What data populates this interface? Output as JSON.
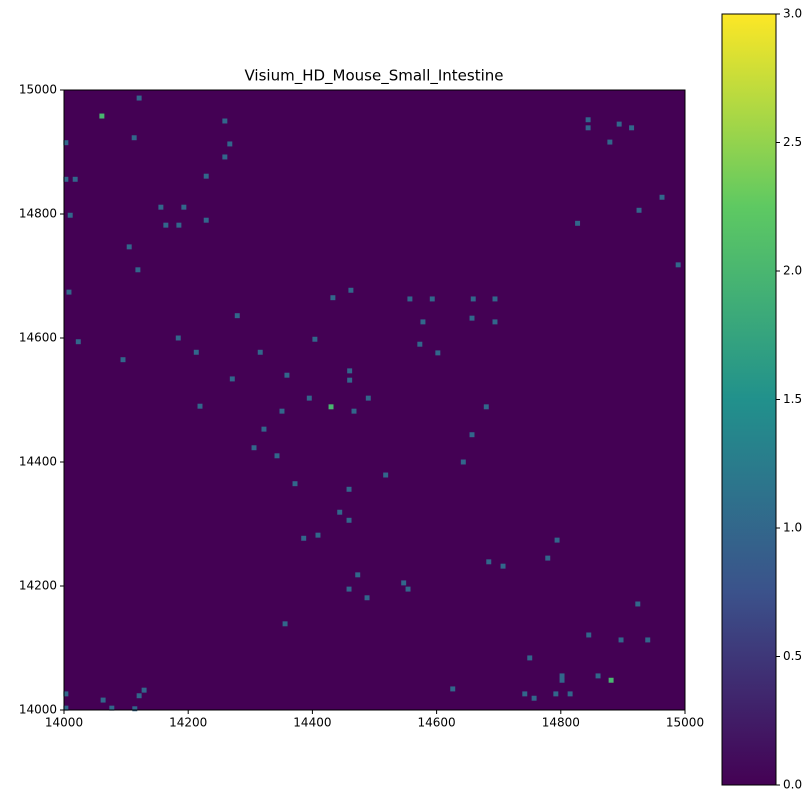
{
  "chart_data": {
    "type": "heatmap",
    "title": "Visium_HD_Mouse_Small_Intestine",
    "colormap": "viridis",
    "x": [
      14121,
      14003,
      14003,
      14018,
      14113,
      14259,
      14267,
      14259,
      14229,
      14010,
      14156,
      14193,
      14164,
      14185,
      14229,
      14105,
      14119,
      14008,
      14023,
      14095,
      14184,
      14213,
      14279,
      14316,
      14271,
      14359,
      14219,
      14351,
      14395,
      14404,
      14433,
      14462,
      14460,
      14460,
      14467,
      14490,
      14322,
      14306,
      14343,
      14372,
      14518,
      14459,
      14444,
      14459,
      14386,
      14409,
      14473,
      14459,
      14488,
      14356,
      14547,
      14554,
      14557,
      14593,
      14578,
      14573,
      14602,
      14659,
      14694,
      14657,
      14694,
      14680,
      14657,
      14643,
      14684,
      14707,
      14779,
      14794,
      14430,
      14844,
      14844,
      14879,
      14894,
      14914,
      14827,
      14926,
      14963,
      14989,
      14750,
      14845,
      14897,
      14924,
      14940,
      14860,
      14881,
      14802,
      14802,
      14792,
      14815,
      14742,
      14757,
      14626,
      14129,
      14121,
      14003,
      14063,
      14077,
      14114,
      14003,
      14061
    ],
    "y": [
      14987,
      14915,
      14856,
      14856,
      14923,
      14950,
      14913,
      14892,
      14861,
      14798,
      14811,
      14811,
      14782,
      14782,
      14790,
      14747,
      14710,
      14674,
      14594,
      14565,
      14600,
      14577,
      14636,
      14577,
      14534,
      14540,
      14490,
      14482,
      14503,
      14598,
      14665,
      14677,
      14547,
      14532,
      14482,
      14503,
      14453,
      14423,
      14410,
      14365,
      14379,
      14356,
      14319,
      14306,
      14277,
      14282,
      14218,
      14195,
      14181,
      14139,
      14205,
      14195,
      14663,
      14663,
      14626,
      14590,
      14576,
      14663,
      14663,
      14632,
      14626,
      14489,
      14444,
      14400,
      14239,
      14232,
      14245,
      14274,
      14489,
      14952,
      14939,
      14916,
      14945,
      14939,
      14785,
      14806,
      14827,
      14718,
      14084,
      14121,
      14113,
      14171,
      14113,
      14055,
      14048,
      14055,
      14048,
      14026,
      14026,
      14026,
      14019,
      14034,
      14032,
      14023,
      14026,
      14016,
      14003,
      14002,
      14003,
      14958
    ],
    "values": [
      1,
      1,
      1,
      1,
      1,
      1,
      1,
      1,
      1,
      1,
      1,
      1,
      1,
      1,
      1,
      1,
      1,
      1,
      1,
      1,
      1,
      1,
      1,
      1,
      1,
      1,
      1,
      1,
      1,
      1,
      1,
      1,
      1,
      1,
      1,
      1,
      1,
      1,
      1,
      1,
      1,
      1,
      1,
      1,
      1,
      1,
      1,
      1,
      1,
      1,
      1,
      1,
      1,
      1,
      1,
      1,
      1,
      1,
      1,
      1,
      1,
      1,
      1,
      1,
      1,
      1,
      1,
      1,
      2,
      1,
      1,
      1,
      1,
      1,
      1,
      1,
      1,
      1,
      1,
      1,
      1,
      1,
      1,
      1,
      2,
      1,
      1,
      1,
      1,
      1,
      1,
      1,
      1,
      1,
      1,
      1,
      1,
      1,
      1,
      2
    ],
    "xlim": [
      14000,
      15000
    ],
    "ylim": [
      14000,
      15000
    ],
    "xticks": [
      14000,
      14200,
      14400,
      14600,
      14800,
      15000
    ],
    "yticks": [
      14000,
      14200,
      14400,
      14600,
      14800,
      15000
    ],
    "clim": [
      0,
      3
    ],
    "cticks": [
      {
        "value": 0,
        "label": "0.0"
      },
      {
        "value": 0.5,
        "label": "0.5"
      },
      {
        "value": 1,
        "label": "1.0"
      },
      {
        "value": 1.5,
        "label": "1.5"
      },
      {
        "value": 2,
        "label": "2.0"
      },
      {
        "value": 2.5,
        "label": "2.5"
      },
      {
        "value": 3,
        "label": "3.0"
      }
    ]
  }
}
